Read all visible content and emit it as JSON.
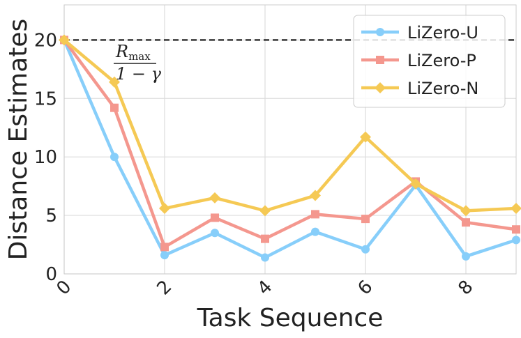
{
  "chart_data": {
    "type": "line",
    "title": "",
    "xlabel": "Task Sequence",
    "ylabel": "Distance Estimates",
    "xlim": [
      0,
      9
    ],
    "ylim": [
      0,
      23
    ],
    "x_ticks": [
      "0",
      "2",
      "4",
      "6",
      "8"
    ],
    "y_ticks": [
      "0",
      "5",
      "10",
      "15",
      "20"
    ],
    "x": [
      0,
      1,
      2,
      3,
      4,
      5,
      6,
      7,
      8,
      9
    ],
    "grid": true,
    "legend_position": "top-right",
    "series": [
      {
        "name": "LiZero-U",
        "color": "#87CEFA",
        "marker": "circle",
        "values": [
          20.0,
          10.0,
          1.6,
          3.5,
          1.4,
          3.6,
          2.1,
          7.6,
          1.5,
          2.9
        ]
      },
      {
        "name": "LiZero-P",
        "color": "#F4978E",
        "marker": "square",
        "values": [
          20.0,
          14.2,
          2.3,
          4.8,
          3.0,
          5.1,
          4.7,
          7.9,
          4.4,
          3.8
        ]
      },
      {
        "name": "LiZero-N",
        "color": "#F5C954",
        "marker": "diamond",
        "values": [
          20.0,
          16.4,
          5.6,
          6.5,
          5.4,
          6.7,
          11.7,
          7.7,
          5.4,
          5.6
        ]
      }
    ],
    "reference_line": {
      "value": 20,
      "style": "dashed",
      "color": "#000000"
    },
    "annotation": {
      "numerator": "R",
      "numerator_sub": "max",
      "denominator": "1 − γ"
    }
  }
}
